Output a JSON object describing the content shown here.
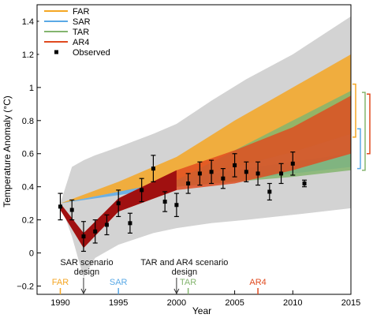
{
  "chart_data": {
    "type": "area",
    "xlabel": "Year",
    "ylabel": "Temperature Anomaly (°C)",
    "xlim": [
      1988,
      2015
    ],
    "ylim": [
      -0.25,
      1.5
    ],
    "x_ticks": [
      1990,
      1995,
      2000,
      2005,
      2010,
      2015
    ],
    "y_ticks": [
      -0.2,
      0,
      0.2,
      0.4,
      0.6,
      0.8,
      1.0,
      1.2,
      1.4
    ],
    "y_tick_labels": [
      "−0.2",
      "0",
      "0.2",
      "0.4",
      "0.6",
      "0.8",
      "1",
      "1.2",
      "1.4"
    ],
    "grid": false,
    "legend_position": "top-left",
    "envelope": {
      "color": "#d3d3d3",
      "x": [
        1990,
        1991,
        1992,
        1993,
        1995,
        1998,
        2000,
        2003,
        2006,
        2010,
        2015
      ],
      "upper": [
        0.3,
        0.52,
        0.56,
        0.59,
        0.64,
        0.72,
        0.78,
        0.92,
        1.05,
        1.2,
        1.43
      ],
      "lower": [
        0.3,
        0.1,
        -0.15,
        -0.03,
        0.05,
        0.12,
        0.15,
        0.18,
        0.2,
        0.23,
        0.27
      ]
    },
    "series": [
      {
        "name": "FAR",
        "color": "#f5a623",
        "x": [
          1990,
          1995,
          2000,
          2005,
          2010,
          2015
        ],
        "upper": [
          0.3,
          0.43,
          0.58,
          0.8,
          1.0,
          1.2
        ],
        "lower": [
          0.3,
          0.37,
          0.43,
          0.52,
          0.61,
          0.72
        ]
      },
      {
        "name": "SAR",
        "color": "#5aa9e6",
        "x": [
          1990,
          1995,
          2000,
          2005,
          2010,
          2015
        ],
        "upper": [
          0.3,
          0.37,
          0.44,
          0.5,
          0.55,
          0.6
        ],
        "lower": [
          0.3,
          0.35,
          0.4,
          0.44,
          0.48,
          0.52
        ]
      },
      {
        "name": "TAR",
        "color": "#84b56f",
        "x": [
          2000,
          2005,
          2010,
          2015
        ],
        "upper": [
          0.44,
          0.62,
          0.8,
          0.98
        ],
        "lower": [
          0.4,
          0.43,
          0.46,
          0.5
        ]
      },
      {
        "name": "AR4",
        "color": "#e04a1f",
        "x": [
          1990,
          1992,
          1995,
          2000,
          2005,
          2010,
          2015
        ],
        "upper": [
          0.3,
          0.12,
          0.33,
          0.5,
          0.62,
          0.76,
          0.95
        ],
        "lower": [
          0.26,
          0.03,
          0.25,
          0.38,
          0.42,
          0.5,
          0.6
        ]
      }
    ],
    "observed": {
      "name": "Observed",
      "x": [
        1990,
        1991,
        1992,
        1993,
        1994,
        1995,
        1996,
        1997,
        1998,
        1999,
        2000,
        2001,
        2002,
        2003,
        2004,
        2005,
        2006,
        2007,
        2008,
        2009,
        2010,
        2011
      ],
      "y": [
        0.28,
        0.26,
        0.1,
        0.13,
        0.17,
        0.3,
        0.18,
        0.38,
        0.51,
        0.31,
        0.29,
        0.42,
        0.48,
        0.49,
        0.45,
        0.53,
        0.49,
        0.48,
        0.37,
        0.48,
        0.54,
        0.42
      ],
      "err": [
        0.08,
        0.06,
        0.09,
        0.07,
        0.06,
        0.08,
        0.06,
        0.07,
        0.08,
        0.06,
        0.07,
        0.06,
        0.07,
        0.07,
        0.06,
        0.07,
        0.06,
        0.07,
        0.05,
        0.06,
        0.07,
        0.02
      ]
    },
    "side_brackets": [
      {
        "series": "FAR",
        "low": 0.7,
        "high": 1.02
      },
      {
        "series": "SAR",
        "low": 0.51,
        "high": 0.75
      },
      {
        "series": "TAR",
        "low": 0.5,
        "high": 0.97
      },
      {
        "series": "AR4",
        "low": 0.6,
        "high": 0.96
      }
    ],
    "annotations": [
      {
        "text": "SAR scenario",
        "text2": "design",
        "x": 1992
      },
      {
        "text": "TAR and AR4 scenario",
        "text2": "design",
        "x": 2000
      }
    ],
    "report_markers": [
      {
        "label": "FAR",
        "x": 1990,
        "color": "#f5a623"
      },
      {
        "label": "SAR",
        "x": 1995,
        "color": "#5aa9e6"
      },
      {
        "label": "TAR",
        "x": 2001,
        "color": "#84b56f"
      },
      {
        "label": "AR4",
        "x": 2007,
        "color": "#e04a1f"
      }
    ]
  }
}
